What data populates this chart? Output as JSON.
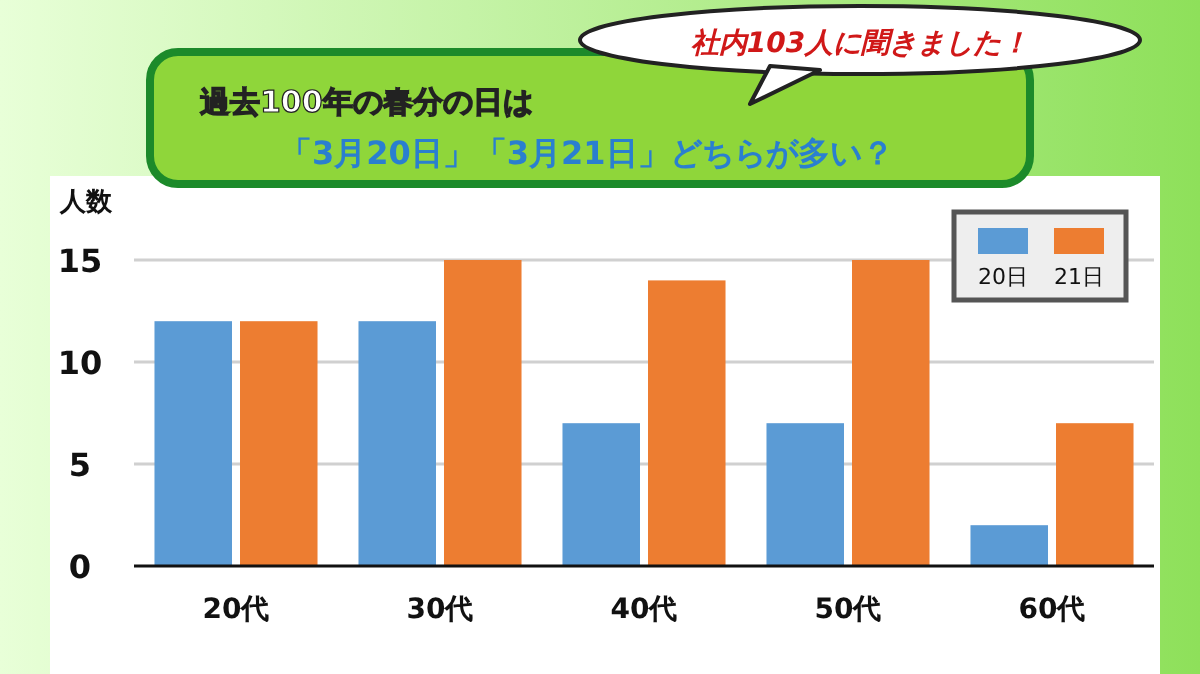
{
  "chart_data": {
    "type": "bar",
    "title": "過去100年の春分の日は",
    "subtitle": "「3月20日」「3月21日」どちらが多い？",
    "annotations": [
      "社内103人に聞きました！"
    ],
    "ylabel": "人数",
    "categories": [
      "20代",
      "30代",
      "40代",
      "50代",
      "60代"
    ],
    "series": [
      {
        "name": "20日",
        "color": "#5b9bd5",
        "values": [
          12,
          12,
          7,
          7,
          2
        ]
      },
      {
        "name": "21日",
        "color": "#ed7d31",
        "values": [
          12,
          15,
          14,
          15,
          7
        ]
      }
    ],
    "ylim": [
      0,
      15
    ],
    "yticks": [
      0,
      5,
      10,
      15
    ],
    "grid": "y",
    "legend": "top right"
  }
}
